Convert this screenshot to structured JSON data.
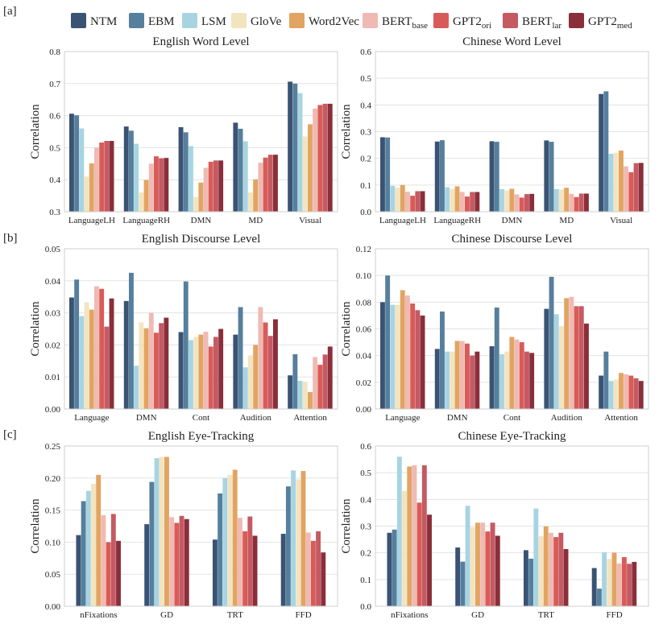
{
  "figure": {
    "section_labels": [
      "[a]",
      "[b]",
      "[c]"
    ],
    "ylabel": "Correlation"
  },
  "legend": [
    {
      "name": "NTM",
      "sub": "",
      "color": "#3a5374"
    },
    {
      "name": "EBM",
      "sub": "",
      "color": "#557f9d"
    },
    {
      "name": "LSM",
      "sub": "",
      "color": "#a8d4e2"
    },
    {
      "name": "GloVe",
      "sub": "",
      "color": "#f3e4c0"
    },
    {
      "name": "Word2Vec",
      "sub": "",
      "color": "#e2a462"
    },
    {
      "name": "BERT",
      "sub": "base",
      "color": "#efbab3"
    },
    {
      "name": "GPT2",
      "sub": "ori",
      "color": "#d95b57"
    },
    {
      "name": "BERT",
      "sub": "lar",
      "color": "#c45a62"
    },
    {
      "name": "GPT2",
      "sub": "med",
      "color": "#8a2f3a"
    }
  ],
  "chart_data": [
    {
      "type": "bar",
      "title": "English Word Level",
      "categories": [
        "LanguageLH",
        "LanguageRH",
        "DMN",
        "MD",
        "Visual"
      ],
      "ylim": [
        0.3,
        0.8
      ],
      "yticks": [
        "0.3",
        "0.4",
        "0.5",
        "0.6",
        "0.7",
        "0.8"
      ],
      "series": [
        {
          "name": "NTM",
          "values": [
            0.606,
            0.566,
            0.564,
            0.578,
            0.706
          ]
        },
        {
          "name": "EBM",
          "values": [
            0.601,
            0.553,
            0.548,
            0.559,
            0.7
          ]
        },
        {
          "name": "LSM",
          "values": [
            0.56,
            0.512,
            0.505,
            0.52,
            0.67
          ]
        },
        {
          "name": "GloVe",
          "values": [
            0.41,
            0.36,
            0.346,
            0.36,
            0.535
          ]
        },
        {
          "name": "Word2Vec",
          "values": [
            0.451,
            0.399,
            0.391,
            0.401,
            0.573
          ]
        },
        {
          "name": "BERT_base",
          "values": [
            0.5,
            0.45,
            0.437,
            0.453,
            0.622
          ]
        },
        {
          "name": "GPT2_ori",
          "values": [
            0.516,
            0.473,
            0.456,
            0.469,
            0.633
          ]
        },
        {
          "name": "BERT_lar",
          "values": [
            0.521,
            0.467,
            0.46,
            0.478,
            0.637
          ]
        },
        {
          "name": "GPT2_med",
          "values": [
            0.521,
            0.468,
            0.46,
            0.478,
            0.637
          ]
        }
      ]
    },
    {
      "type": "bar",
      "title": "Chinese Word Level",
      "categories": [
        "LanguageLH",
        "LanguageRH",
        "DMN",
        "MD",
        "Visual"
      ],
      "ylim": [
        0.0,
        0.6
      ],
      "yticks": [
        "0.0",
        "0.1",
        "0.2",
        "0.3",
        "0.4",
        "0.5",
        "0.6"
      ],
      "series": [
        {
          "name": "NTM",
          "values": [
            0.279,
            0.263,
            0.264,
            0.267,
            0.441
          ]
        },
        {
          "name": "EBM",
          "values": [
            0.278,
            0.268,
            0.262,
            0.262,
            0.451
          ]
        },
        {
          "name": "LSM",
          "values": [
            0.097,
            0.092,
            0.085,
            0.085,
            0.217
          ]
        },
        {
          "name": "GloVe",
          "values": [
            0.09,
            0.085,
            0.08,
            0.083,
            0.221
          ]
        },
        {
          "name": "Word2Vec",
          "values": [
            0.1,
            0.095,
            0.086,
            0.09,
            0.229
          ]
        },
        {
          "name": "BERT_base",
          "values": [
            0.075,
            0.074,
            0.065,
            0.067,
            0.17
          ]
        },
        {
          "name": "GPT2_ori",
          "values": [
            0.06,
            0.057,
            0.053,
            0.055,
            0.148
          ]
        },
        {
          "name": "BERT_lar",
          "values": [
            0.077,
            0.074,
            0.066,
            0.068,
            0.182
          ]
        },
        {
          "name": "GPT2_med",
          "values": [
            0.077,
            0.074,
            0.067,
            0.068,
            0.183
          ]
        }
      ]
    },
    {
      "type": "bar",
      "title": "English Discourse Level",
      "categories": [
        "Language",
        "DMN",
        "Cont",
        "Audition",
        "Attention"
      ],
      "ylim": [
        0.0,
        0.05
      ],
      "yticks": [
        "0.00",
        "0.01",
        "0.02",
        "0.03",
        "0.04",
        "0.05"
      ],
      "series": [
        {
          "name": "NTM",
          "values": [
            0.0348,
            0.0337,
            0.024,
            0.0232,
            0.0105
          ]
        },
        {
          "name": "EBM",
          "values": [
            0.0404,
            0.0425,
            0.0398,
            0.0318,
            0.0171
          ]
        },
        {
          "name": "LSM",
          "values": [
            0.029,
            0.0135,
            0.0215,
            0.013,
            0.0088
          ]
        },
        {
          "name": "GloVe",
          "values": [
            0.0333,
            0.027,
            0.0225,
            0.0167,
            0.0085
          ]
        },
        {
          "name": "Word2Vec",
          "values": [
            0.031,
            0.0252,
            0.0232,
            0.02,
            0.0053
          ]
        },
        {
          "name": "BERT_base",
          "values": [
            0.0383,
            0.03,
            0.0241,
            0.0318,
            0.0162
          ]
        },
        {
          "name": "GPT2_ori",
          "values": [
            0.0375,
            0.0238,
            0.0195,
            0.027,
            0.0138
          ]
        },
        {
          "name": "BERT_lar",
          "values": [
            0.0257,
            0.0268,
            0.0225,
            0.0228,
            0.017
          ]
        },
        {
          "name": "GPT2_med",
          "values": [
            0.0345,
            0.0285,
            0.025,
            0.028,
            0.0195
          ]
        }
      ]
    },
    {
      "type": "bar",
      "title": "Chinese Discourse Level",
      "categories": [
        "Language",
        "DMN",
        "Cont",
        "Audition",
        "Attention"
      ],
      "ylim": [
        0.0,
        0.12
      ],
      "yticks": [
        "0.00",
        "0.02",
        "0.04",
        "0.06",
        "0.08",
        "0.10",
        "0.12"
      ],
      "series": [
        {
          "name": "NTM",
          "values": [
            0.08,
            0.045,
            0.047,
            0.075,
            0.025
          ]
        },
        {
          "name": "EBM",
          "values": [
            0.1,
            0.073,
            0.076,
            0.099,
            0.043
          ]
        },
        {
          "name": "LSM",
          "values": [
            0.078,
            0.043,
            0.041,
            0.071,
            0.021
          ]
        },
        {
          "name": "GloVe",
          "values": [
            0.078,
            0.043,
            0.043,
            0.062,
            0.022
          ]
        },
        {
          "name": "Word2Vec",
          "values": [
            0.089,
            0.051,
            0.054,
            0.083,
            0.027
          ]
        },
        {
          "name": "BERT_base",
          "values": [
            0.085,
            0.051,
            0.052,
            0.084,
            0.026
          ]
        },
        {
          "name": "GPT2_ori",
          "values": [
            0.079,
            0.049,
            0.05,
            0.077,
            0.025
          ]
        },
        {
          "name": "BERT_lar",
          "values": [
            0.074,
            0.04,
            0.043,
            0.077,
            0.023
          ]
        },
        {
          "name": "GPT2_med",
          "values": [
            0.07,
            0.043,
            0.042,
            0.064,
            0.021
          ]
        }
      ]
    },
    {
      "type": "bar",
      "title": "English Eye-Tracking",
      "categories": [
        "nFixations",
        "GD",
        "TRT",
        "FFD"
      ],
      "ylim": [
        0.0,
        0.25
      ],
      "yticks": [
        "0.00",
        "0.05",
        "0.10",
        "0.15",
        "0.20",
        "0.25"
      ],
      "series": [
        {
          "name": "NTM",
          "values": [
            0.111,
            0.128,
            0.104,
            0.113
          ]
        },
        {
          "name": "EBM",
          "values": [
            0.164,
            0.194,
            0.176,
            0.187
          ]
        },
        {
          "name": "LSM",
          "values": [
            0.18,
            0.231,
            0.2,
            0.212
          ]
        },
        {
          "name": "GloVe",
          "values": [
            0.191,
            0.233,
            0.205,
            0.198
          ]
        },
        {
          "name": "Word2Vec",
          "values": [
            0.205,
            0.233,
            0.213,
            0.211
          ]
        },
        {
          "name": "BERT_base",
          "values": [
            0.142,
            0.139,
            0.138,
            0.115
          ]
        },
        {
          "name": "GPT2_ori",
          "values": [
            0.1,
            0.13,
            0.117,
            0.102
          ]
        },
        {
          "name": "BERT_lar",
          "values": [
            0.144,
            0.141,
            0.14,
            0.117
          ]
        },
        {
          "name": "GPT2_med",
          "values": [
            0.102,
            0.136,
            0.11,
            0.084
          ]
        }
      ]
    },
    {
      "type": "bar",
      "title": "Chinese Eye-Tracking",
      "categories": [
        "nFixations",
        "GD",
        "TRT",
        "FFD"
      ],
      "ylim": [
        0.0,
        0.6
      ],
      "yticks": [
        "0.0",
        "0.1",
        "0.2",
        "0.3",
        "0.4",
        "0.5",
        "0.6"
      ],
      "series": [
        {
          "name": "NTM",
          "values": [
            0.275,
            0.22,
            0.21,
            0.143
          ]
        },
        {
          "name": "EBM",
          "values": [
            0.287,
            0.167,
            0.178,
            0.066
          ]
        },
        {
          "name": "LSM",
          "values": [
            0.56,
            0.376,
            0.366,
            0.202
          ]
        },
        {
          "name": "GloVe",
          "values": [
            0.432,
            0.296,
            0.262,
            0.177
          ]
        },
        {
          "name": "Word2Vec",
          "values": [
            0.523,
            0.313,
            0.299,
            0.201
          ]
        },
        {
          "name": "BERT_base",
          "values": [
            0.528,
            0.313,
            0.275,
            0.16
          ]
        },
        {
          "name": "GPT2_ori",
          "values": [
            0.388,
            0.28,
            0.259,
            0.184
          ]
        },
        {
          "name": "BERT_lar",
          "values": [
            0.528,
            0.313,
            0.275,
            0.159
          ]
        },
        {
          "name": "GPT2_med",
          "values": [
            0.343,
            0.264,
            0.214,
            0.166
          ]
        }
      ]
    }
  ]
}
